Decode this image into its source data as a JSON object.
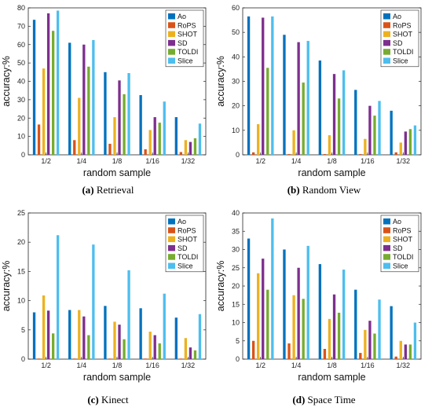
{
  "series_colors": [
    "#0072BD",
    "#D95319",
    "#EDB120",
    "#7E2F8E",
    "#77AC30",
    "#4DBEEE"
  ],
  "chart_data": [
    {
      "type": "bar",
      "caption_letter": "(a)",
      "caption_text": "Retrieval",
      "xlabel": "random sample",
      "ylabel": "accuracy:%",
      "ylim": [
        0,
        80
      ],
      "yticks": [
        0,
        10,
        20,
        30,
        40,
        50,
        60,
        70,
        80
      ],
      "grid": false,
      "legend_position": "top-right",
      "categories": [
        "1/2",
        "1/4",
        "1/8",
        "1/16",
        "1/32"
      ],
      "series": [
        {
          "name": "Ao",
          "values": [
            73.5,
            61,
            45,
            32.5,
            20.5
          ]
        },
        {
          "name": "RoPS",
          "values": [
            16.5,
            8,
            6,
            3,
            1.5
          ]
        },
        {
          "name": "SHOT",
          "values": [
            47,
            31,
            20.5,
            13.5,
            8
          ]
        },
        {
          "name": "SD",
          "values": [
            77,
            60,
            40.5,
            20.5,
            7
          ]
        },
        {
          "name": "TOLDI",
          "values": [
            67.5,
            48,
            33,
            17.5,
            9
          ]
        },
        {
          "name": "Slice",
          "values": [
            78.5,
            62.5,
            44.5,
            29,
            17
          ]
        }
      ]
    },
    {
      "type": "bar",
      "caption_letter": "(b)",
      "caption_text": "Random View",
      "xlabel": "random sample",
      "ylabel": "accuracy:%",
      "ylim": [
        0,
        60
      ],
      "yticks": [
        0,
        10,
        20,
        30,
        40,
        50,
        60
      ],
      "grid": false,
      "legend_position": "top-right",
      "categories": [
        "1/2",
        "1/4",
        "1/8",
        "1/16",
        "1/32"
      ],
      "series": [
        {
          "name": "Ao",
          "values": [
            56.5,
            49,
            38.5,
            26.5,
            18
          ]
        },
        {
          "name": "RoPS",
          "values": [
            1,
            0.3,
            0.3,
            0.3,
            1
          ]
        },
        {
          "name": "SHOT",
          "values": [
            12.5,
            10,
            8,
            6.5,
            5
          ]
        },
        {
          "name": "SD",
          "values": [
            56,
            46,
            33,
            20,
            9.5
          ]
        },
        {
          "name": "TOLDI",
          "values": [
            35.5,
            29.5,
            23,
            16,
            10.5
          ]
        },
        {
          "name": "Slice",
          "values": [
            56.5,
            46.5,
            34.5,
            22,
            12
          ]
        }
      ]
    },
    {
      "type": "bar",
      "caption_letter": "(c)",
      "caption_text": "Kinect",
      "xlabel": "random sample",
      "ylabel": "accuracy:%",
      "ylim": [
        0,
        25
      ],
      "yticks": [
        0,
        5,
        10,
        15,
        20,
        25
      ],
      "grid": false,
      "legend_position": "top-right",
      "categories": [
        "1/2",
        "1/4",
        "1/8",
        "1/16",
        "1/32"
      ],
      "series": [
        {
          "name": "Ao",
          "values": [
            8,
            8.4,
            9.1,
            8.7,
            7.1
          ]
        },
        {
          "name": "RoPS",
          "values": [
            0.1,
            0.1,
            0.1,
            0.1,
            0.1
          ]
        },
        {
          "name": "SHOT",
          "values": [
            10.9,
            8.4,
            6.4,
            4.7,
            3.6
          ]
        },
        {
          "name": "SD",
          "values": [
            8.3,
            7.3,
            5.9,
            4.1,
            2
          ]
        },
        {
          "name": "TOLDI",
          "values": [
            4.4,
            4.1,
            3.4,
            2.7,
            1.5
          ]
        },
        {
          "name": "Slice",
          "values": [
            21.2,
            19.6,
            15.2,
            11.2,
            7.7
          ]
        }
      ]
    },
    {
      "type": "bar",
      "caption_letter": "(d)",
      "caption_text": "Space Time",
      "xlabel": "random sample",
      "ylabel": "accuracy:%",
      "ylim": [
        0,
        40
      ],
      "yticks": [
        0,
        5,
        10,
        15,
        20,
        25,
        30,
        35,
        40
      ],
      "grid": false,
      "legend_position": "top-right",
      "categories": [
        "1/2",
        "1/4",
        "1/8",
        "1/16",
        "1/32"
      ],
      "series": [
        {
          "name": "Ao",
          "values": [
            33,
            30,
            26,
            19,
            14.5
          ]
        },
        {
          "name": "RoPS",
          "values": [
            5,
            4.3,
            2.8,
            1.7,
            0.7
          ]
        },
        {
          "name": "SHOT",
          "values": [
            23.5,
            17.5,
            11,
            8,
            5
          ]
        },
        {
          "name": "SD",
          "values": [
            27.5,
            25,
            17.7,
            10.5,
            4
          ]
        },
        {
          "name": "TOLDI",
          "values": [
            19,
            16.5,
            12.7,
            7,
            4
          ]
        },
        {
          "name": "Slice",
          "values": [
            38.5,
            31,
            24.5,
            16.3,
            10
          ]
        }
      ]
    }
  ]
}
